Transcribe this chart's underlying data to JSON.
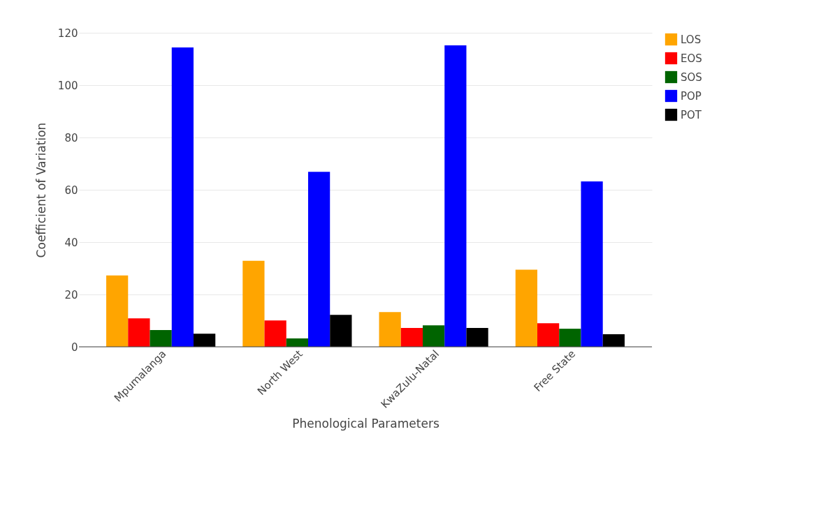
{
  "chart_data": {
    "type": "bar",
    "xlabel": "Phenological Parameters",
    "ylabel": "Coefficient of Variation",
    "categories": [
      "Mpumalanga",
      "North West",
      "KwaZulu-Natal",
      "Free State"
    ],
    "series": [
      {
        "name": "LOS",
        "color": "#ffa500",
        "values": [
          27.3,
          32.9,
          13.3,
          29.5
        ]
      },
      {
        "name": "EOS",
        "color": "#ff0000",
        "values": [
          10.9,
          10.1,
          7.2,
          9.0
        ]
      },
      {
        "name": "SOS",
        "color": "#006400",
        "values": [
          6.4,
          3.2,
          8.2,
          6.9
        ]
      },
      {
        "name": "POP",
        "color": "#0000ff",
        "values": [
          114.4,
          66.9,
          115.2,
          63.2
        ]
      },
      {
        "name": "POT",
        "color": "#000000",
        "values": [
          5.0,
          12.2,
          7.2,
          4.8
        ]
      }
    ],
    "ylim": [
      0,
      120
    ],
    "yticks": [
      0,
      20,
      40,
      60,
      80,
      100,
      120
    ],
    "grid": "y",
    "legend": "top right"
  }
}
